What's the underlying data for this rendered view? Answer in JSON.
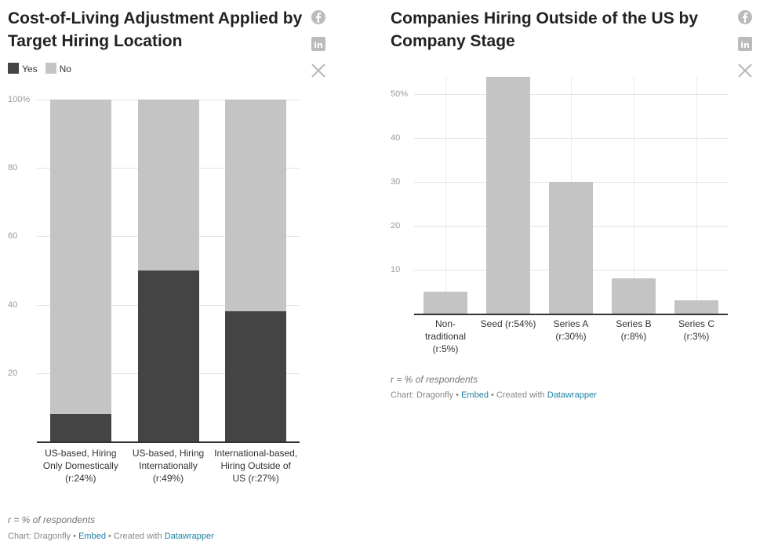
{
  "chart_data": [
    {
      "type": "bar",
      "stacked": true,
      "title": "Cost-of-Living Adjustment Applied by Target Hiring Location",
      "categories": [
        "US-based, Hiring Only Domestically (r:24%)",
        "US-based, Hiring Internationally (r:49%)",
        "International-based, Hiring Outside of US (r:27%)"
      ],
      "series": [
        {
          "name": "Yes",
          "color": "#444444",
          "values": [
            8,
            50,
            38
          ]
        },
        {
          "name": "No",
          "color": "#c4c4c4",
          "values": [
            92,
            50,
            62
          ]
        }
      ],
      "ylim": [
        0,
        100
      ],
      "yticks": [
        20,
        40,
        60,
        80,
        {
          "value": 100,
          "label": "100%"
        }
      ],
      "grid": true,
      "note": "r = % of respondents",
      "credit": [
        "Chart: Dragonfly",
        "•",
        "Embed",
        "•",
        "Created with",
        "Datawrapper"
      ]
    },
    {
      "type": "bar",
      "title": "Companies Hiring Outside of the US by Company Stage",
      "categories": [
        "Non-traditional (r:5%)",
        "Seed (r:54%)",
        "Series A (r:30%)",
        "Series B (r:8%)",
        "Series C (r:3%)"
      ],
      "values": [
        5,
        54,
        30,
        8,
        3
      ],
      "color": "#c4c4c4",
      "ylim": [
        0,
        54
      ],
      "yticks": [
        10,
        20,
        30,
        40,
        {
          "value": 50,
          "label": "50%"
        }
      ],
      "grid": true,
      "note": "r = % of respondents",
      "credit": [
        "Chart: Dragonfly",
        "•",
        "Embed",
        "•",
        "Created with",
        "Datawrapper"
      ]
    }
  ]
}
